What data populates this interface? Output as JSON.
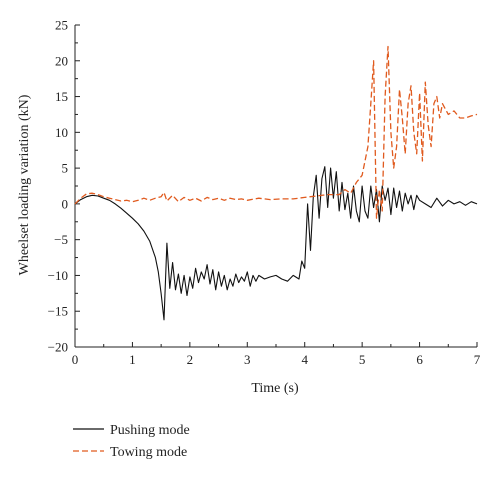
{
  "chart_data": {
    "type": "line",
    "title": "",
    "xlabel": "Time (s)",
    "ylabel": "Wheelset loading variation (kN)",
    "xlim": [
      0,
      7
    ],
    "ylim": [
      -20,
      25
    ],
    "xticks": [
      0,
      1,
      2,
      3,
      4,
      5,
      6,
      7
    ],
    "yticks": [
      -20,
      -15,
      -10,
      -5,
      0,
      5,
      10,
      15,
      20,
      25
    ],
    "grid": false,
    "legend_position": "bottom-left, below plot",
    "series": [
      {
        "name": "Pushing mode",
        "color": "#111111",
        "dash": "solid",
        "x": [
          0,
          0.1,
          0.2,
          0.3,
          0.4,
          0.5,
          0.6,
          0.7,
          0.8,
          0.9,
          1.0,
          1.1,
          1.2,
          1.3,
          1.4,
          1.45,
          1.5,
          1.55,
          1.6,
          1.65,
          1.7,
          1.75,
          1.8,
          1.85,
          1.9,
          1.95,
          2.0,
          2.05,
          2.1,
          2.15,
          2.2,
          2.25,
          2.3,
          2.35,
          2.4,
          2.45,
          2.5,
          2.55,
          2.6,
          2.65,
          2.7,
          2.75,
          2.8,
          2.85,
          2.9,
          2.95,
          3.0,
          3.05,
          3.1,
          3.15,
          3.2,
          3.3,
          3.4,
          3.5,
          3.6,
          3.7,
          3.8,
          3.9,
          3.95,
          4.0,
          4.05,
          4.1,
          4.15,
          4.2,
          4.25,
          4.3,
          4.35,
          4.4,
          4.45,
          4.5,
          4.55,
          4.6,
          4.65,
          4.7,
          4.75,
          4.8,
          4.85,
          4.9,
          4.95,
          5.0,
          5.05,
          5.1,
          5.15,
          5.2,
          5.25,
          5.3,
          5.35,
          5.4,
          5.45,
          5.5,
          5.55,
          5.6,
          5.65,
          5.7,
          5.75,
          5.8,
          5.85,
          5.9,
          5.95,
          6.0,
          6.1,
          6.2,
          6.3,
          6.4,
          6.5,
          6.6,
          6.7,
          6.8,
          6.9,
          7.0
        ],
        "y": [
          0,
          0.6,
          1.0,
          1.2,
          1.1,
          0.8,
          0.5,
          0,
          -0.6,
          -1.3,
          -2.0,
          -2.8,
          -3.8,
          -5.2,
          -7.5,
          -9.5,
          -12.5,
          -16.2,
          -5.5,
          -11.8,
          -8.2,
          -12.0,
          -9.8,
          -12.5,
          -10.0,
          -12.8,
          -10.2,
          -11.8,
          -9.0,
          -11.0,
          -9.5,
          -10.5,
          -8.5,
          -11.2,
          -9.2,
          -12.0,
          -9.5,
          -11.5,
          -10.0,
          -12.0,
          -10.5,
          -11.5,
          -9.8,
          -11.0,
          -10.2,
          -10.8,
          -9.5,
          -11.5,
          -10.0,
          -10.8,
          -10.0,
          -10.5,
          -10.2,
          -10.0,
          -10.5,
          -10.8,
          -10.0,
          -10.5,
          -8.0,
          -9.0,
          0,
          -6.5,
          1.0,
          4.0,
          -2.0,
          3.5,
          5.2,
          -0.5,
          5.0,
          0.8,
          4.5,
          -1.0,
          3.0,
          -0.8,
          1.5,
          -2.0,
          2.5,
          -1.0,
          -2.5,
          2.5,
          -1.0,
          -2.0,
          2.5,
          -0.5,
          2.0,
          -2.5,
          2.5,
          0.5,
          2.2,
          -1.5,
          2.2,
          -0.5,
          1.8,
          -1.0,
          1.5,
          0,
          1.2,
          -0.8,
          1.2,
          0.5,
          0,
          -0.5,
          0.8,
          -0.3,
          0.5,
          0,
          0.3,
          -0.2,
          0.3,
          0
        ]
      },
      {
        "name": "Towing mode",
        "color": "#e05a1e",
        "dash": "dashed",
        "x": [
          0,
          0.1,
          0.2,
          0.3,
          0.4,
          0.5,
          0.6,
          0.7,
          0.8,
          0.9,
          1.0,
          1.1,
          1.2,
          1.3,
          1.4,
          1.5,
          1.55,
          1.6,
          1.7,
          1.8,
          1.9,
          2.0,
          2.1,
          2.2,
          2.3,
          2.4,
          2.5,
          2.6,
          2.7,
          2.8,
          2.9,
          3.0,
          3.2,
          3.4,
          3.6,
          3.8,
          4.0,
          4.2,
          4.4,
          4.6,
          4.7,
          4.8,
          4.9,
          5.0,
          5.05,
          5.1,
          5.15,
          5.2,
          5.25,
          5.3,
          5.35,
          5.4,
          5.45,
          5.5,
          5.55,
          5.6,
          5.65,
          5.7,
          5.75,
          5.8,
          5.85,
          5.9,
          5.95,
          6.0,
          6.05,
          6.1,
          6.15,
          6.2,
          6.25,
          6.3,
          6.35,
          6.4,
          6.5,
          6.6,
          6.7,
          6.8,
          6.9,
          7.0
        ],
        "y": [
          0,
          0.8,
          1.4,
          1.5,
          1.3,
          1.0,
          0.8,
          0.6,
          0.4,
          0.5,
          0.3,
          0.5,
          0.8,
          0.5,
          0.8,
          1.0,
          1.6,
          0.4,
          1.2,
          0.3,
          0.9,
          0.5,
          0.8,
          0.4,
          0.9,
          0.6,
          0.8,
          0.5,
          0.8,
          0.6,
          0.7,
          0.5,
          0.8,
          0.6,
          0.7,
          0.7,
          0.9,
          1.1,
          1.3,
          1.3,
          2.0,
          1.5,
          3.0,
          4.0,
          6.0,
          8.0,
          14.0,
          20.0,
          -2.0,
          2.0,
          -1.0,
          15.0,
          22.0,
          10.0,
          5.0,
          8.0,
          16.0,
          12.0,
          7.0,
          14.0,
          16.5,
          10.0,
          7.0,
          15.5,
          6.0,
          17.0,
          11.0,
          8.0,
          14.0,
          15.0,
          12.0,
          14.0,
          12.5,
          13.0,
          12.0,
          12.0,
          12.3,
          12.5
        ]
      }
    ]
  }
}
